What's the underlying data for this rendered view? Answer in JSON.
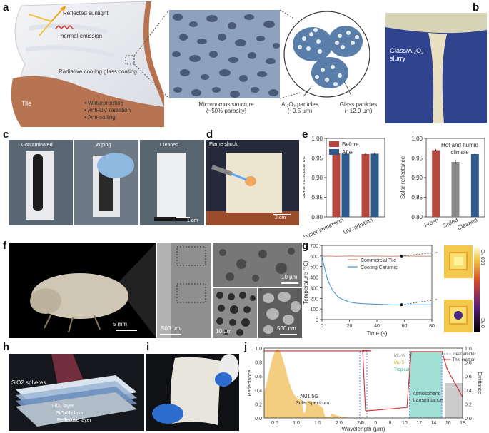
{
  "letters": [
    "a",
    "b",
    "c",
    "d",
    "e",
    "f",
    "g",
    "h",
    "i",
    "j"
  ],
  "panel_a": {
    "reflected": "Reflected sunlight",
    "thermal": "Thermal emission",
    "coating": "Radiative cooling glass coating",
    "tile": "Tile",
    "bullets": [
      "Waterproofing",
      "Anti-UV radiation",
      "Anti-soiling"
    ],
    "micro_label1": "Microporous structure",
    "micro_label2": "(~50% porosity)",
    "al_label1": "Al₂O₃ particles",
    "al_label2": "(~0.5 µm)",
    "glass_label1": "Glass particles",
    "glass_label2": "(~12.0 µm)"
  },
  "panel_b": {
    "label1": "Glass/Al₂O₃",
    "label2": "slurry"
  },
  "panel_c": {
    "labels": [
      "Contaminated",
      "Wiping",
      "Cleaned"
    ],
    "scale": "1 cm"
  },
  "panel_d": {
    "label": "Flame shock",
    "scale": "2 cm"
  },
  "panel_f": {
    "scale1": "5 mm",
    "scale2": "500 µm",
    "scale3": "10 µm",
    "scale4": "10 µm",
    "scale5": "500 nm"
  },
  "panel_g_inset": {
    "tmax": "800 °C",
    "tmin": "0 °C"
  },
  "panel_h": {
    "layers": [
      "SiO2 spheres",
      "SiO₂ layer",
      "SiOxNy layer",
      "Reflective layer"
    ]
  },
  "chart_data": [
    {
      "panel": "e-left",
      "type": "bar",
      "categories": [
        "Water immersion",
        "UV radiation"
      ],
      "series": [
        {
          "name": "Before",
          "values": [
            0.962,
            0.96
          ],
          "errors": [
            0.004,
            0.003
          ],
          "color": "#b5473f"
        },
        {
          "name": "After",
          "values": [
            0.961,
            0.961
          ],
          "errors": [
            0.003,
            0.003
          ],
          "color": "#2f5b8c"
        }
      ],
      "ylabel": "Solar reflectance",
      "ylim": [
        0.8,
        1.0
      ],
      "yticks": [
        "0.80",
        "0.85",
        "0.90",
        "0.95",
        "1.00"
      ],
      "legend": "top-left"
    },
    {
      "panel": "e-right",
      "type": "bar",
      "title": "Hot and humid climate",
      "categories": [
        "Fresh",
        "Soiled",
        "Cleaned"
      ],
      "values": [
        0.97,
        0.94,
        0.96
      ],
      "errors": [
        0.003,
        0.006,
        0.003
      ],
      "colors": [
        "#b5473f",
        "#8a8a8a",
        "#2f5b8c"
      ],
      "ylabel": "Solar reflectance",
      "ylim": [
        0.8,
        1.0
      ],
      "yticks": [
        "0.80",
        "0.85",
        "0.90",
        "0.95",
        "1.00"
      ]
    },
    {
      "panel": "g",
      "type": "line",
      "series": [
        {
          "name": "Commercial Tile",
          "color": "#c98b6d",
          "x": [
            0,
            2,
            5,
            10,
            20,
            30,
            40,
            50,
            60,
            70,
            80
          ],
          "y": [
            600,
            598,
            600,
            597,
            600,
            598,
            600,
            597,
            600,
            598,
            598
          ]
        },
        {
          "name": "Cooling Ceramic",
          "color": "#3d8fd0",
          "x": [
            0,
            2,
            4,
            6,
            8,
            10,
            12,
            15,
            18,
            20,
            25,
            30,
            40,
            50,
            60,
            70,
            80
          ],
          "y": [
            600,
            480,
            380,
            320,
            270,
            240,
            210,
            190,
            175,
            165,
            155,
            150,
            145,
            140,
            138,
            140,
            140
          ]
        }
      ],
      "xlabel": "Time (s)",
      "ylabel": "Temperature (°C)",
      "xlim": [
        0,
        80
      ],
      "ylim": [
        0,
        700
      ],
      "xticks": [
        "0",
        "20",
        "40",
        "60",
        "80"
      ],
      "yticks": [
        "0",
        "100",
        "200",
        "300",
        "400",
        "500",
        "600",
        "700"
      ]
    },
    {
      "panel": "j",
      "type": "line",
      "xlabel": "Wavelength (µm)",
      "ylabel_left": "Reflectance",
      "ylabel_right": "Emittance",
      "yticks": [
        "0.0",
        "0.2",
        "0.4",
        "0.6",
        "0.8",
        "1.0"
      ],
      "xticks_left": [
        "0.5",
        "1.0",
        "1.5",
        "2.0",
        "2.5"
      ],
      "xticks_right": [
        "4",
        "6",
        "8",
        "10",
        "12",
        "14",
        "16",
        "18"
      ],
      "labels": {
        "am": "AM1.5G",
        "solar": "Solar spectrum",
        "atm": "Atmospheric",
        "trans": "transmittance",
        "mlw": "ML-W",
        "mls": "ML-S",
        "trop": "Tropical"
      },
      "legend": [
        "Ideal emitter",
        "This emitter"
      ]
    }
  ]
}
